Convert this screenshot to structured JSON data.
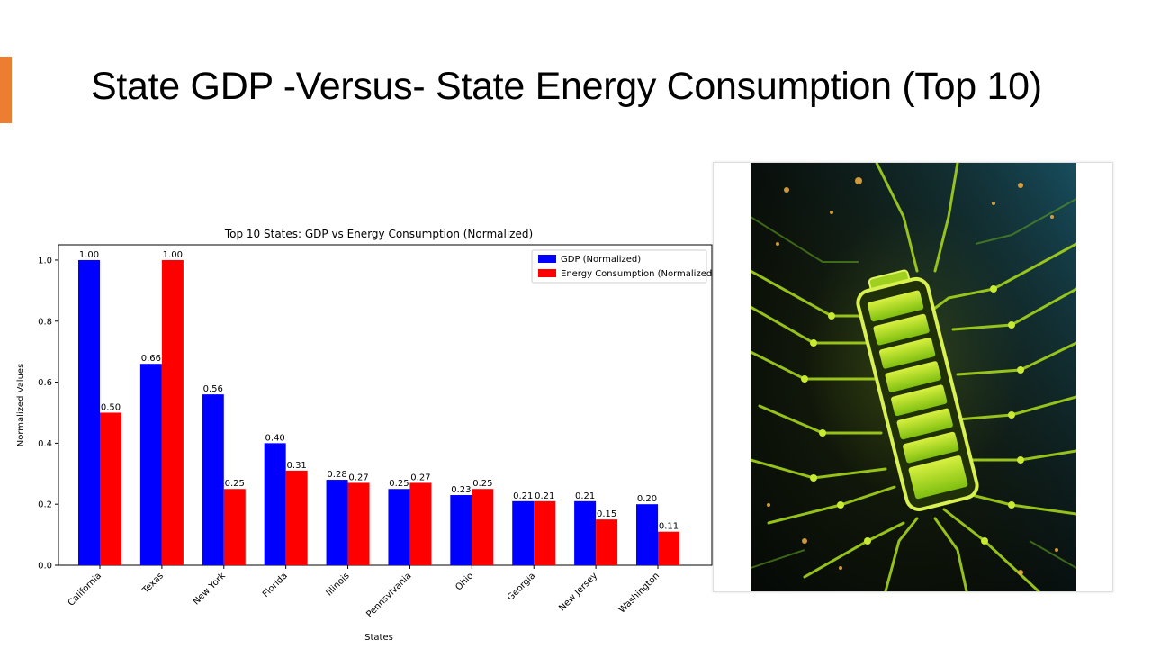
{
  "slide": {
    "title": "State GDP -Versus- State Energy Consumption (Top 10)",
    "accent_color": "#ED7D31"
  },
  "chart_data": {
    "type": "bar",
    "title": "Top 10 States: GDP vs Energy Consumption (Normalized)",
    "xlabel": "States",
    "ylabel": "Normalized Values",
    "categories": [
      "California",
      "Texas",
      "New York",
      "Florida",
      "Illinois",
      "Pennsylvania",
      "Ohio",
      "Georgia",
      "New Jersey",
      "Washington"
    ],
    "series": [
      {
        "name": "GDP (Normalized)",
        "color": "#0000ff",
        "values": [
          1.0,
          0.66,
          0.56,
          0.4,
          0.28,
          0.25,
          0.23,
          0.21,
          0.21,
          0.2
        ],
        "labels": [
          "1.00",
          "0.66",
          "0.56",
          "0.40",
          "0.28",
          "0.25",
          "0.23",
          "0.21",
          "0.21",
          "0.20"
        ]
      },
      {
        "name": "Energy Consumption (Normalized)",
        "color": "#ff0000",
        "values": [
          0.5,
          1.0,
          0.25,
          0.31,
          0.27,
          0.27,
          0.25,
          0.21,
          0.15,
          0.11
        ],
        "labels": [
          "0.50",
          "1.00",
          "0.25",
          "0.31",
          "0.27",
          "0.27",
          "0.25",
          "0.21",
          "0.15",
          "0.11"
        ]
      }
    ],
    "ylim": [
      0,
      1.05
    ],
    "yticks": [
      "0.0",
      "0.2",
      "0.4",
      "0.6",
      "0.8",
      "1.0"
    ],
    "ytick_values": [
      0,
      0.2,
      0.4,
      0.6,
      0.8,
      1.0
    ],
    "legend_position": "top-right",
    "grid": false
  },
  "image": {
    "subject": "circuit-board-battery-illustration"
  }
}
